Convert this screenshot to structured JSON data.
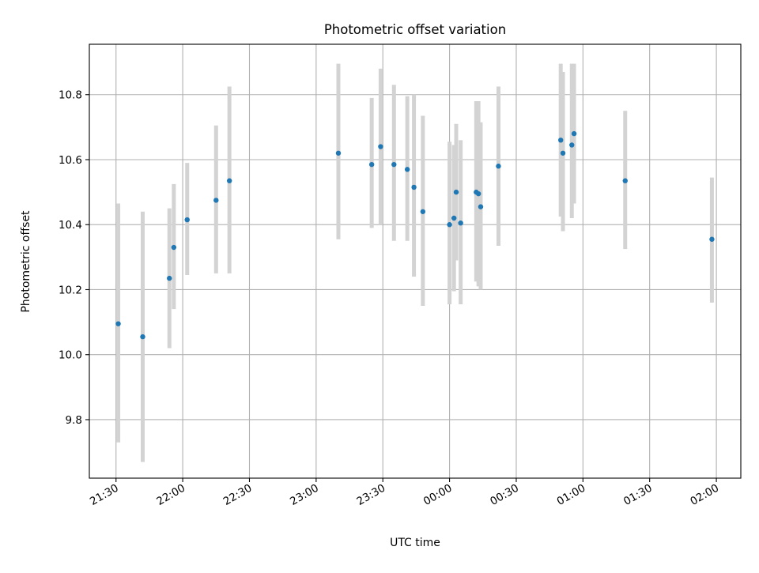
{
  "chart_data": {
    "type": "scatter",
    "title": "Photometric offset variation",
    "xlabel": "UTC time",
    "ylabel": "Photometric offset",
    "grid": true,
    "xlim": [
      "21:18",
      "02:11"
    ],
    "ylim": [
      9.62,
      10.955
    ],
    "x_ticks": [
      "21:30",
      "22:00",
      "22:30",
      "23:00",
      "23:30",
      "00:00",
      "00:30",
      "01:00",
      "01:30",
      "02:00"
    ],
    "y_ticks": [
      "9.8",
      "10.0",
      "10.2",
      "10.4",
      "10.6",
      "10.8"
    ],
    "colors": {
      "point": "#1f77b4",
      "errorbar": "#d3d3d3",
      "grid": "#b0b0b0"
    },
    "points": [
      {
        "x": "21:31",
        "y": 10.095,
        "low": 9.73,
        "high": 10.465
      },
      {
        "x": "21:42",
        "y": 10.055,
        "low": 9.67,
        "high": 10.44
      },
      {
        "x": "21:54",
        "y": 10.235,
        "low": 10.02,
        "high": 10.45
      },
      {
        "x": "21:56",
        "y": 10.33,
        "low": 10.14,
        "high": 10.525
      },
      {
        "x": "22:02",
        "y": 10.415,
        "low": 10.245,
        "high": 10.59
      },
      {
        "x": "22:15",
        "y": 10.475,
        "low": 10.25,
        "high": 10.705
      },
      {
        "x": "22:21",
        "y": 10.535,
        "low": 10.25,
        "high": 10.825
      },
      {
        "x": "23:10",
        "y": 10.62,
        "low": 10.355,
        "high": 10.895
      },
      {
        "x": "23:25",
        "y": 10.585,
        "low": 10.39,
        "high": 10.79
      },
      {
        "x": "23:29",
        "y": 10.64,
        "low": 10.4,
        "high": 10.88
      },
      {
        "x": "23:35",
        "y": 10.585,
        "low": 10.35,
        "high": 10.83
      },
      {
        "x": "23:41",
        "y": 10.57,
        "low": 10.35,
        "high": 10.795
      },
      {
        "x": "23:44",
        "y": 10.515,
        "low": 10.24,
        "high": 10.8
      },
      {
        "x": "23:48",
        "y": 10.44,
        "low": 10.15,
        "high": 10.735
      },
      {
        "x": "00:00",
        "y": 10.4,
        "low": 10.155,
        "high": 10.655
      },
      {
        "x": "00:02",
        "y": 10.42,
        "low": 10.195,
        "high": 10.645
      },
      {
        "x": "00:03",
        "y": 10.5,
        "low": 10.29,
        "high": 10.71
      },
      {
        "x": "00:05",
        "y": 10.405,
        "low": 10.155,
        "high": 10.66
      },
      {
        "x": "00:12",
        "y": 10.5,
        "low": 10.225,
        "high": 10.78
      },
      {
        "x": "00:13",
        "y": 10.495,
        "low": 10.21,
        "high": 10.78
      },
      {
        "x": "00:14",
        "y": 10.455,
        "low": 10.2,
        "high": 10.715
      },
      {
        "x": "00:22",
        "y": 10.58,
        "low": 10.335,
        "high": 10.825
      },
      {
        "x": "00:50",
        "y": 10.66,
        "low": 10.425,
        "high": 10.895
      },
      {
        "x": "00:51",
        "y": 10.62,
        "low": 10.38,
        "high": 10.87
      },
      {
        "x": "00:55",
        "y": 10.645,
        "low": 10.42,
        "high": 10.895
      },
      {
        "x": "00:56",
        "y": 10.68,
        "low": 10.465,
        "high": 10.895
      },
      {
        "x": "01:19",
        "y": 10.535,
        "low": 10.325,
        "high": 10.75
      },
      {
        "x": "01:58",
        "y": 10.355,
        "low": 10.16,
        "high": 10.545
      }
    ]
  }
}
